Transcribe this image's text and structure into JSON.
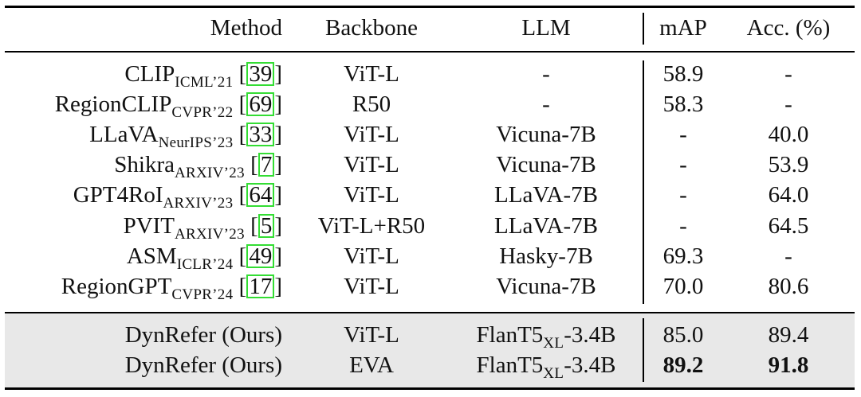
{
  "header": {
    "method": "Method",
    "backbone": "Backbone",
    "llm": "LLM",
    "map": "mAP",
    "acc": "Acc. (%)"
  },
  "rows": [
    {
      "name": "CLIP",
      "venue": "ICML’21",
      "ref": "39",
      "backbone": "ViT-L",
      "llm": "-",
      "map": "58.9",
      "acc": "-"
    },
    {
      "name": "RegionCLIP",
      "venue": "CVPR’22",
      "ref": "69",
      "backbone": "R50",
      "llm": "-",
      "map": "58.3",
      "acc": "-"
    },
    {
      "name": "LLaVA",
      "venue": "NeurIPS’23",
      "ref": "33",
      "backbone": "ViT-L",
      "llm": "Vicuna-7B",
      "map": "-",
      "acc": "40.0"
    },
    {
      "name": "Shikra",
      "venue": "ARXIV’23",
      "ref": "7",
      "backbone": "ViT-L",
      "llm": "Vicuna-7B",
      "map": "-",
      "acc": "53.9"
    },
    {
      "name": "GPT4RoI",
      "venue": "ARXIV’23",
      "ref": "64",
      "backbone": "ViT-L",
      "llm": "LLaVA-7B",
      "map": "-",
      "acc": "64.0"
    },
    {
      "name": "PVIT",
      "venue": "ARXIV’23",
      "ref": "5",
      "backbone": "ViT-L+R50",
      "llm": "LLaVA-7B",
      "map": "-",
      "acc": "64.5"
    },
    {
      "name": "ASM",
      "venue": "ICLR’24",
      "ref": "49",
      "backbone": "ViT-L",
      "llm": "Hasky-7B",
      "map": "69.3",
      "acc": "-"
    },
    {
      "name": "RegionGPT",
      "venue": "CVPR’24",
      "ref": "17",
      "backbone": "ViT-L",
      "llm": "Vicuna-7B",
      "map": "70.0",
      "acc": "80.6"
    }
  ],
  "ours": [
    {
      "name": "DynRefer (Ours)",
      "backbone": "ViT-L",
      "llm_base": "FlanT5",
      "llm_sub": "XL",
      "llm_suffix": "-3.4B",
      "map": "85.0",
      "acc": "89.4",
      "bold": false
    },
    {
      "name": "DynRefer (Ours)",
      "backbone": "EVA",
      "llm_base": "FlanT5",
      "llm_sub": "XL",
      "llm_suffix": "-3.4B",
      "map": "89.2",
      "acc": "91.8",
      "bold": true
    }
  ]
}
